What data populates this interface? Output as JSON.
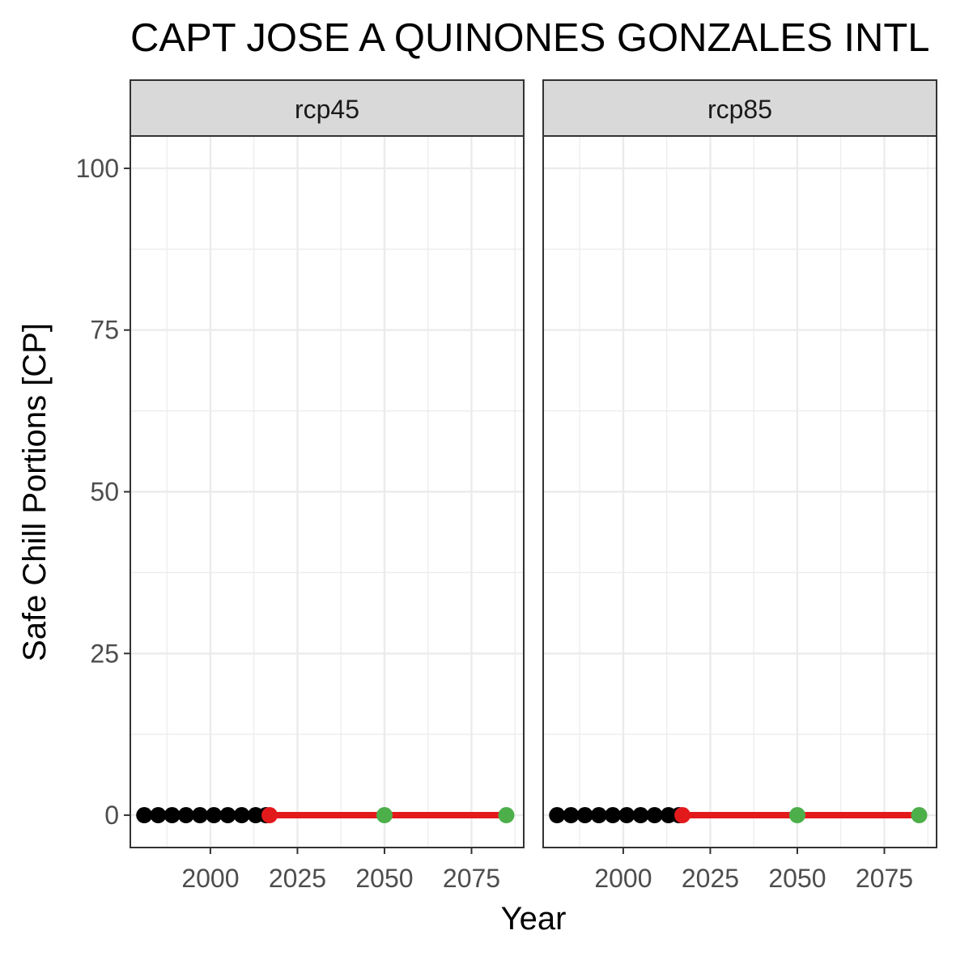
{
  "chart_data": {
    "type": "scatter",
    "title": "CAPT JOSE A  QUINONES GONZALES INTL",
    "xlabel": "Year",
    "ylabel": "Safe Chill Portions [CP]",
    "xlim": [
      1977,
      2090
    ],
    "ylim": [
      -5,
      105
    ],
    "x_ticks": [
      2000,
      2025,
      2050,
      2075
    ],
    "x_tick_labels": [
      "2000",
      "2025",
      "2050",
      "2075"
    ],
    "y_ticks": [
      0,
      25,
      50,
      75,
      100
    ],
    "y_tick_labels": [
      "0",
      "25",
      "50",
      "75",
      "100"
    ],
    "grid": true,
    "panels": [
      {
        "label": "rcp45",
        "historic_points": {
          "color": "#000000",
          "x": [
            1981,
            1985,
            1989,
            1993,
            1997,
            2001,
            2005,
            2009,
            2013,
            2016
          ],
          "y": [
            0,
            0,
            0,
            0,
            0,
            0,
            0,
            0,
            0,
            0
          ]
        },
        "projection_line": {
          "color": "#e31a1c",
          "x": [
            2017,
            2085
          ],
          "y": [
            0,
            0
          ]
        },
        "current_point": {
          "color": "#e31a1c",
          "x": 2017,
          "y": 0
        },
        "future_points": {
          "color": "#4daf4a",
          "x": [
            2050,
            2085
          ],
          "y": [
            0,
            0
          ]
        }
      },
      {
        "label": "rcp85",
        "historic_points": {
          "color": "#000000",
          "x": [
            1981,
            1985,
            1989,
            1993,
            1997,
            2001,
            2005,
            2009,
            2013,
            2016
          ],
          "y": [
            0,
            0,
            0,
            0,
            0,
            0,
            0,
            0,
            0,
            0
          ]
        },
        "projection_line": {
          "color": "#e31a1c",
          "x": [
            2017,
            2085
          ],
          "y": [
            0,
            0
          ]
        },
        "current_point": {
          "color": "#e31a1c",
          "x": 2017,
          "y": 0
        },
        "future_points": {
          "color": "#4daf4a",
          "x": [
            2050,
            2085
          ],
          "y": [
            0,
            0
          ]
        }
      }
    ]
  }
}
